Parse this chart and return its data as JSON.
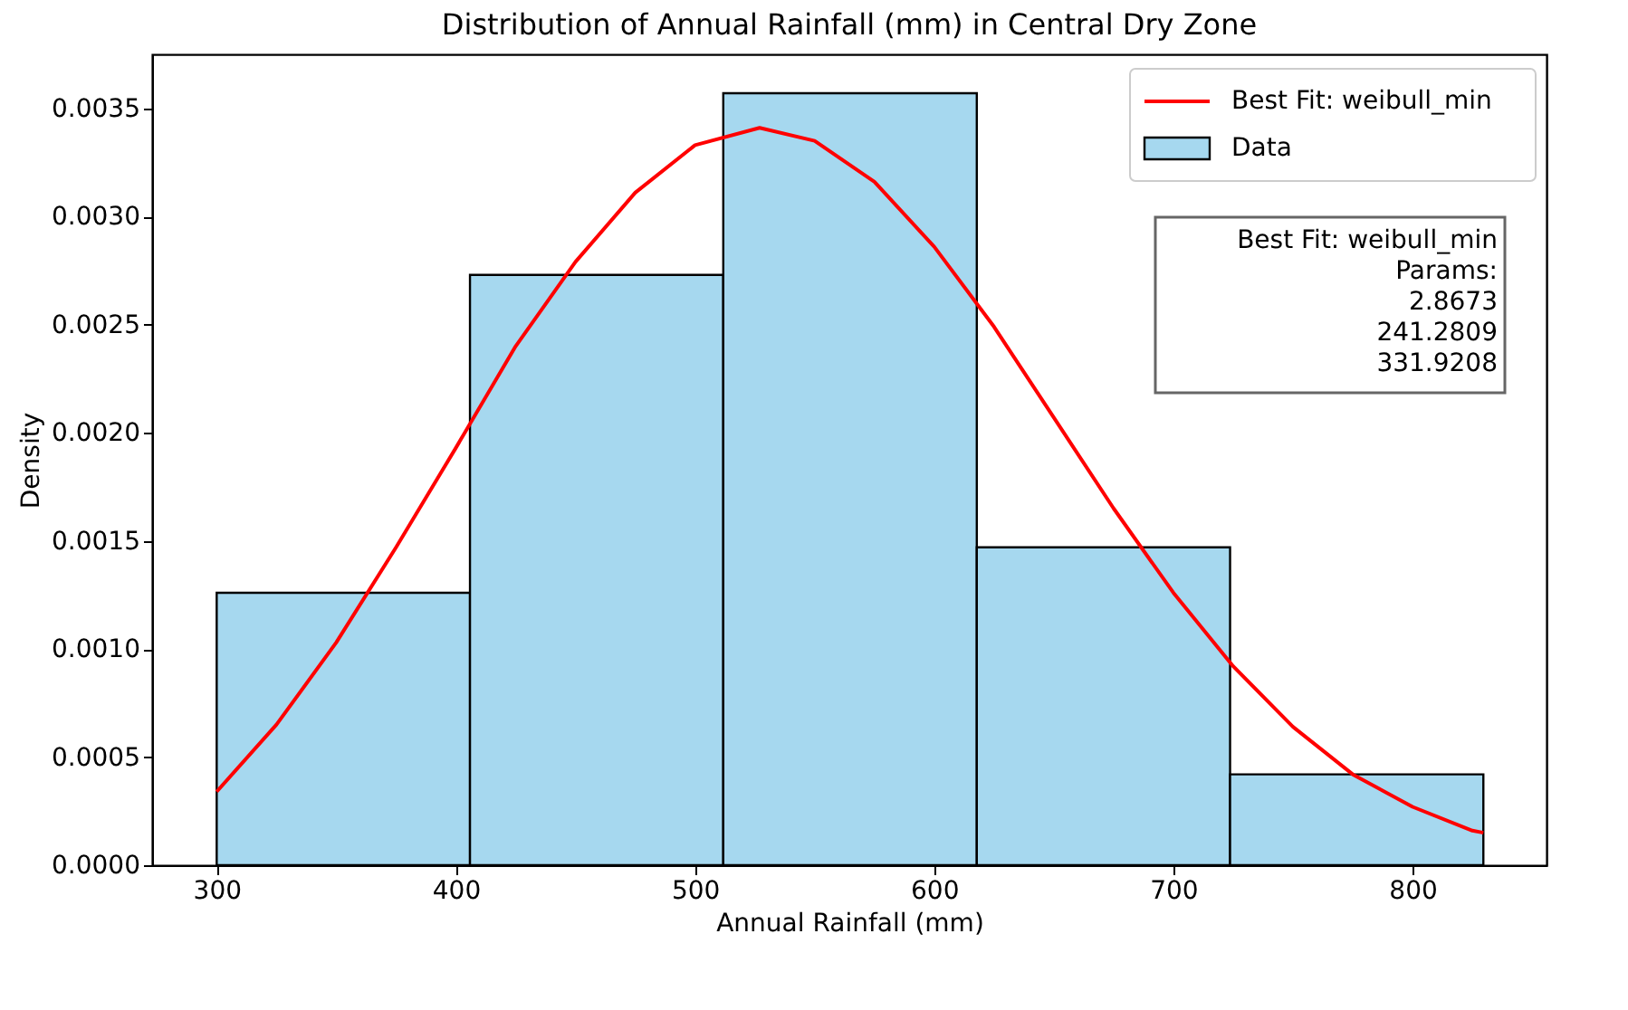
{
  "chart_data": {
    "type": "histogram",
    "title": "Distribution of Annual Rainfall (mm) in Central Dry Zone",
    "xlabel": "Annual Rainfall (mm)",
    "ylabel": "Density",
    "series": [
      {
        "name": "Data",
        "color": "#a6d8ef",
        "bins": [
          300,
          405.9,
          511.8,
          617.8,
          723.7,
          829.6
        ],
        "values": [
          0.00126,
          0.00273,
          0.00357,
          0.00147,
          0.00042
        ]
      },
      {
        "type": "line",
        "name": "Best Fit: weibull_min",
        "color": "#ff0000",
        "x": [
          300,
          325,
          350,
          375,
          400,
          425,
          450,
          475,
          500,
          527,
          550,
          575,
          600,
          625,
          650,
          675,
          700,
          725,
          750,
          775,
          800,
          825,
          829.6
        ],
        "values": [
          0.00034,
          0.00065,
          0.00103,
          0.00147,
          0.00193,
          0.0024,
          0.00279,
          0.00311,
          0.00333,
          0.00341,
          0.00335,
          0.00316,
          0.00286,
          0.00249,
          0.00207,
          0.00165,
          0.00126,
          0.00092,
          0.00064,
          0.00042,
          0.00027,
          0.00016,
          0.00015
        ]
      }
    ],
    "annotations": [
      "Best Fit: weibull_min\nParams:\n2.8673\n241.2809\n331.9208"
    ],
    "xlim": [
      273,
      856
    ],
    "xticks": [
      300,
      400,
      500,
      600,
      700,
      800
    ],
    "ylim": [
      0,
      0.00375
    ],
    "yticks": [
      {
        "value": 0,
        "label": "0.0000"
      },
      {
        "value": 0.0005,
        "label": "0.0005"
      },
      {
        "value": 0.001,
        "label": "0.0010"
      },
      {
        "value": 0.0015,
        "label": "0.0015"
      },
      {
        "value": 0.002,
        "label": "0.0020"
      },
      {
        "value": 0.0025,
        "label": "0.0025"
      },
      {
        "value": 0.003,
        "label": "0.0030"
      },
      {
        "value": 0.0035,
        "label": "0.0035"
      }
    ],
    "grid": false,
    "legend": "top right"
  }
}
